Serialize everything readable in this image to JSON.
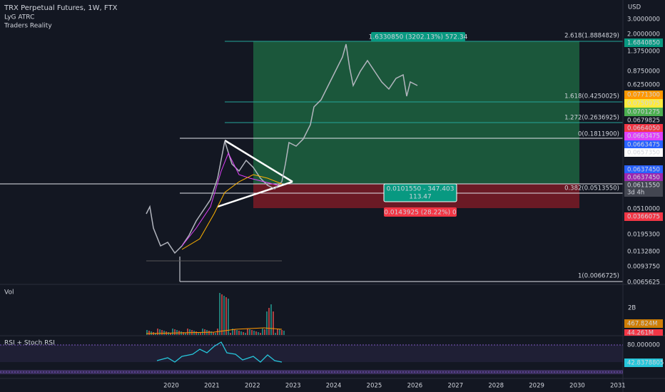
{
  "header": {
    "symbol": "TRX Perpetual Futures, 1W, FTX",
    "indicators": [
      "LyG ATRC",
      "Traders Reality"
    ]
  },
  "price_axis": {
    "currency": "USD",
    "labels": [
      "3.0000000",
      "2.0000000",
      "1.6840850",
      "1.3750000",
      "0.8750000",
      "0.6250000",
      "0.0771300",
      "0.0750975",
      "0.0701275",
      "0.0679825",
      "0.0664050",
      "0.0663475",
      "0.0663475",
      "0.0657350",
      "0.0637450",
      "0.0637450",
      "0.0611550",
      "3d 4h",
      "0.0510000",
      "0.0366075",
      "0.0195300",
      "0.0132800",
      "0.0093750",
      "0.0065625"
    ]
  },
  "fib_levels": [
    "2.618(1.8884829)",
    "1.618(0.4250025)",
    "1.272(0.2636925)",
    "0(0.1811900)",
    "0.382(0.0513550)",
    "1(0.0066725)"
  ],
  "position": {
    "target": "1.6330850 (3202.13%) 572.34",
    "entry": [
      "0.0101550 - 347.403",
      "113.47"
    ],
    "stop": "0.0143925 (28.22%) 0"
  },
  "volume_pane": {
    "title": "Vol",
    "labels": [
      "2B",
      "467.824M",
      "44.261M"
    ]
  },
  "rsi_pane": {
    "title": "RSI + Stoch RSI",
    "labels": [
      "80.000000",
      "42.8378805"
    ]
  },
  "time_axis": [
    "2020",
    "2021",
    "2022",
    "2023",
    "2024",
    "2025",
    "2026",
    "2027",
    "2028",
    "2029",
    "2030",
    "2031"
  ]
}
